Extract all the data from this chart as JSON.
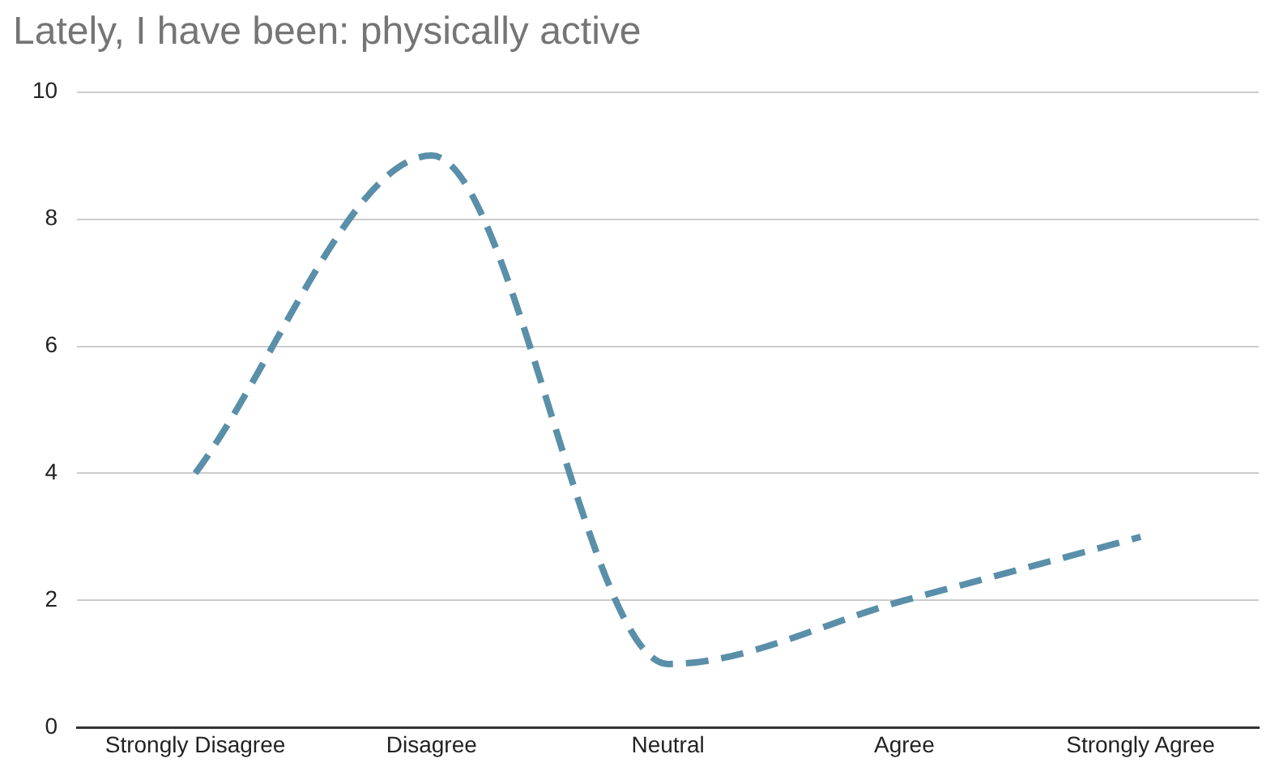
{
  "chart_data": {
    "type": "line",
    "title": "Lately, I have been: physically active",
    "categories": [
      "Strongly Disagree",
      "Disagree",
      "Neutral",
      "Agree",
      "Strongly Agree"
    ],
    "series": [
      {
        "color": "#5a8fa9",
        "values": [
          4,
          9,
          1,
          2,
          3
        ]
      }
    ],
    "ylim": [
      0,
      10
    ],
    "yticks": [
      0,
      2,
      4,
      6,
      8,
      10
    ],
    "grid": "y",
    "legend": false,
    "marker": "none",
    "line_style": "dashed"
  }
}
